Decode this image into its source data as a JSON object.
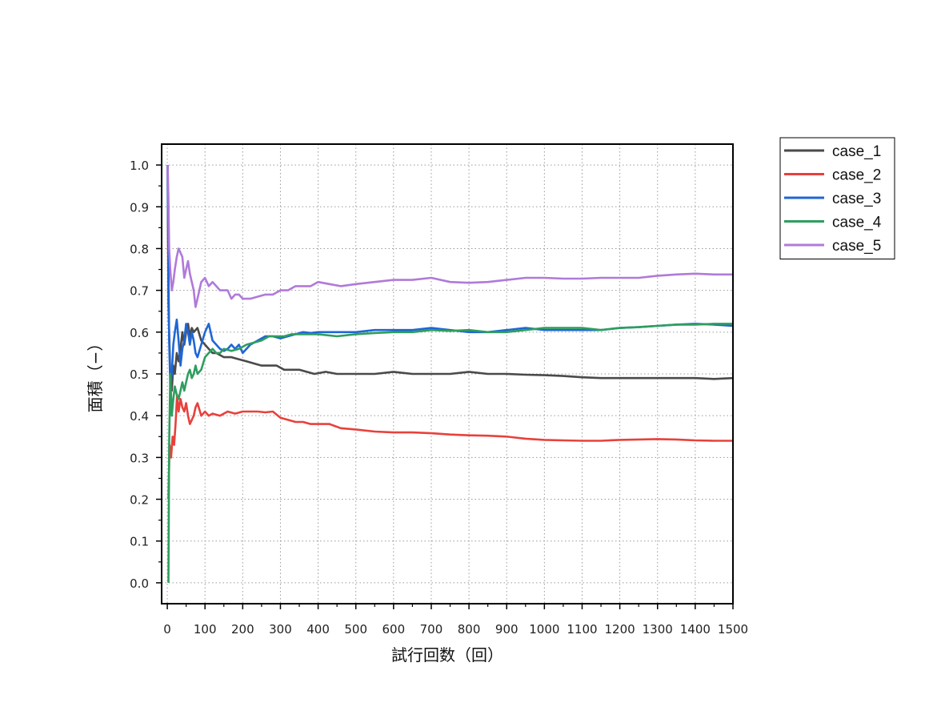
{
  "chart_data": {
    "type": "line",
    "xlabel": "試行回数（回）",
    "ylabel": "面積（−）",
    "xlim": [
      -15,
      1500
    ],
    "ylim": [
      -0.05,
      1.05
    ],
    "xticks": [
      0,
      100,
      200,
      300,
      400,
      500,
      600,
      700,
      800,
      900,
      1000,
      1100,
      1200,
      1300,
      1400,
      1500
    ],
    "yticks": [
      0.0,
      0.1,
      0.2,
      0.3,
      0.4,
      0.5,
      0.6,
      0.7,
      0.8,
      0.9,
      1.0
    ],
    "ytick_labels": [
      "0.0",
      "0.1",
      "0.2",
      "0.3",
      "0.4",
      "0.5",
      "0.6",
      "0.7",
      "0.8",
      "0.9",
      "1.0"
    ],
    "grid": true,
    "legend_position": "outside-top-right",
    "series": [
      {
        "name": "case_1",
        "color": "#4a4a4a",
        "points": [
          [
            1,
            1.0
          ],
          [
            3,
            0.67
          ],
          [
            5,
            0.6
          ],
          [
            8,
            0.5
          ],
          [
            12,
            0.46
          ],
          [
            16,
            0.52
          ],
          [
            20,
            0.5
          ],
          [
            25,
            0.55
          ],
          [
            30,
            0.53
          ],
          [
            35,
            0.56
          ],
          [
            40,
            0.6
          ],
          [
            45,
            0.57
          ],
          [
            50,
            0.6
          ],
          [
            55,
            0.62
          ],
          [
            60,
            0.59
          ],
          [
            65,
            0.61
          ],
          [
            70,
            0.6
          ],
          [
            80,
            0.61
          ],
          [
            90,
            0.58
          ],
          [
            100,
            0.57
          ],
          [
            110,
            0.56
          ],
          [
            120,
            0.55
          ],
          [
            130,
            0.55
          ],
          [
            140,
            0.545
          ],
          [
            150,
            0.54
          ],
          [
            170,
            0.54
          ],
          [
            190,
            0.535
          ],
          [
            210,
            0.53
          ],
          [
            230,
            0.525
          ],
          [
            250,
            0.52
          ],
          [
            270,
            0.52
          ],
          [
            290,
            0.52
          ],
          [
            310,
            0.51
          ],
          [
            330,
            0.51
          ],
          [
            350,
            0.51
          ],
          [
            370,
            0.505
          ],
          [
            390,
            0.5
          ],
          [
            420,
            0.505
          ],
          [
            450,
            0.5
          ],
          [
            500,
            0.5
          ],
          [
            550,
            0.5
          ],
          [
            600,
            0.505
          ],
          [
            650,
            0.5
          ],
          [
            700,
            0.5
          ],
          [
            750,
            0.5
          ],
          [
            800,
            0.505
          ],
          [
            850,
            0.5
          ],
          [
            900,
            0.5
          ],
          [
            950,
            0.498
          ],
          [
            1000,
            0.497
          ],
          [
            1050,
            0.495
          ],
          [
            1100,
            0.492
          ],
          [
            1150,
            0.49
          ],
          [
            1200,
            0.49
          ],
          [
            1250,
            0.49
          ],
          [
            1300,
            0.49
          ],
          [
            1350,
            0.49
          ],
          [
            1400,
            0.49
          ],
          [
            1450,
            0.488
          ],
          [
            1500,
            0.49
          ]
        ]
      },
      {
        "name": "case_2",
        "color": "#e8413c",
        "points": [
          [
            3,
            0.2
          ],
          [
            6,
            0.33
          ],
          [
            10,
            0.3
          ],
          [
            14,
            0.35
          ],
          [
            18,
            0.33
          ],
          [
            22,
            0.38
          ],
          [
            26,
            0.45
          ],
          [
            30,
            0.41
          ],
          [
            35,
            0.44
          ],
          [
            40,
            0.42
          ],
          [
            45,
            0.41
          ],
          [
            50,
            0.43
          ],
          [
            55,
            0.4
          ],
          [
            60,
            0.38
          ],
          [
            65,
            0.39
          ],
          [
            70,
            0.4
          ],
          [
            75,
            0.42
          ],
          [
            80,
            0.43
          ],
          [
            90,
            0.4
          ],
          [
            100,
            0.41
          ],
          [
            110,
            0.4
          ],
          [
            120,
            0.405
          ],
          [
            140,
            0.4
          ],
          [
            160,
            0.41
          ],
          [
            180,
            0.405
          ],
          [
            200,
            0.41
          ],
          [
            220,
            0.41
          ],
          [
            240,
            0.41
          ],
          [
            260,
            0.408
          ],
          [
            280,
            0.41
          ],
          [
            300,
            0.395
          ],
          [
            320,
            0.39
          ],
          [
            340,
            0.385
          ],
          [
            360,
            0.385
          ],
          [
            380,
            0.38
          ],
          [
            400,
            0.38
          ],
          [
            430,
            0.38
          ],
          [
            460,
            0.37
          ],
          [
            500,
            0.367
          ],
          [
            550,
            0.362
          ],
          [
            600,
            0.36
          ],
          [
            650,
            0.36
          ],
          [
            700,
            0.358
          ],
          [
            750,
            0.355
          ],
          [
            800,
            0.353
          ],
          [
            850,
            0.352
          ],
          [
            900,
            0.35
          ],
          [
            950,
            0.345
          ],
          [
            1000,
            0.342
          ],
          [
            1050,
            0.341
          ],
          [
            1100,
            0.34
          ],
          [
            1150,
            0.34
          ],
          [
            1200,
            0.342
          ],
          [
            1250,
            0.343
          ],
          [
            1300,
            0.344
          ],
          [
            1350,
            0.343
          ],
          [
            1400,
            0.341
          ],
          [
            1450,
            0.34
          ],
          [
            1500,
            0.34
          ]
        ]
      },
      {
        "name": "case_3",
        "color": "#1f66d6",
        "points": [
          [
            1,
            1.0
          ],
          [
            3,
            0.75
          ],
          [
            5,
            0.58
          ],
          [
            8,
            0.47
          ],
          [
            12,
            0.5
          ],
          [
            16,
            0.57
          ],
          [
            20,
            0.6
          ],
          [
            25,
            0.63
          ],
          [
            30,
            0.58
          ],
          [
            35,
            0.52
          ],
          [
            40,
            0.56
          ],
          [
            45,
            0.58
          ],
          [
            50,
            0.62
          ],
          [
            55,
            0.6
          ],
          [
            60,
            0.57
          ],
          [
            65,
            0.6
          ],
          [
            70,
            0.58
          ],
          [
            75,
            0.55
          ],
          [
            80,
            0.54
          ],
          [
            90,
            0.57
          ],
          [
            100,
            0.6
          ],
          [
            110,
            0.62
          ],
          [
            120,
            0.58
          ],
          [
            130,
            0.57
          ],
          [
            140,
            0.56
          ],
          [
            150,
            0.555
          ],
          [
            160,
            0.56
          ],
          [
            170,
            0.57
          ],
          [
            180,
            0.56
          ],
          [
            190,
            0.57
          ],
          [
            200,
            0.55
          ],
          [
            210,
            0.56
          ],
          [
            220,
            0.57
          ],
          [
            240,
            0.58
          ],
          [
            260,
            0.59
          ],
          [
            280,
            0.59
          ],
          [
            300,
            0.585
          ],
          [
            320,
            0.59
          ],
          [
            340,
            0.595
          ],
          [
            360,
            0.6
          ],
          [
            380,
            0.598
          ],
          [
            400,
            0.6
          ],
          [
            450,
            0.6
          ],
          [
            500,
            0.6
          ],
          [
            550,
            0.605
          ],
          [
            600,
            0.605
          ],
          [
            650,
            0.605
          ],
          [
            700,
            0.61
          ],
          [
            750,
            0.605
          ],
          [
            800,
            0.6
          ],
          [
            850,
            0.6
          ],
          [
            900,
            0.605
          ],
          [
            950,
            0.61
          ],
          [
            1000,
            0.605
          ],
          [
            1050,
            0.605
          ],
          [
            1100,
            0.605
          ],
          [
            1150,
            0.605
          ],
          [
            1200,
            0.61
          ],
          [
            1250,
            0.612
          ],
          [
            1300,
            0.615
          ],
          [
            1350,
            0.618
          ],
          [
            1400,
            0.62
          ],
          [
            1450,
            0.618
          ],
          [
            1500,
            0.615
          ]
        ]
      },
      {
        "name": "case_4",
        "color": "#2e9e5e",
        "points": [
          [
            3,
            0.0
          ],
          [
            5,
            0.33
          ],
          [
            8,
            0.5
          ],
          [
            12,
            0.4
          ],
          [
            16,
            0.44
          ],
          [
            20,
            0.47
          ],
          [
            25,
            0.45
          ],
          [
            30,
            0.44
          ],
          [
            35,
            0.46
          ],
          [
            40,
            0.48
          ],
          [
            45,
            0.46
          ],
          [
            50,
            0.48
          ],
          [
            55,
            0.5
          ],
          [
            60,
            0.51
          ],
          [
            65,
            0.49
          ],
          [
            70,
            0.5
          ],
          [
            75,
            0.52
          ],
          [
            80,
            0.5
          ],
          [
            90,
            0.51
          ],
          [
            100,
            0.54
          ],
          [
            110,
            0.55
          ],
          [
            120,
            0.56
          ],
          [
            130,
            0.55
          ],
          [
            140,
            0.55
          ],
          [
            150,
            0.56
          ],
          [
            170,
            0.555
          ],
          [
            190,
            0.56
          ],
          [
            210,
            0.57
          ],
          [
            230,
            0.575
          ],
          [
            250,
            0.58
          ],
          [
            270,
            0.59
          ],
          [
            290,
            0.59
          ],
          [
            310,
            0.59
          ],
          [
            330,
            0.595
          ],
          [
            350,
            0.595
          ],
          [
            370,
            0.595
          ],
          [
            400,
            0.595
          ],
          [
            450,
            0.59
          ],
          [
            500,
            0.595
          ],
          [
            550,
            0.598
          ],
          [
            600,
            0.6
          ],
          [
            650,
            0.6
          ],
          [
            700,
            0.605
          ],
          [
            750,
            0.603
          ],
          [
            800,
            0.605
          ],
          [
            850,
            0.6
          ],
          [
            900,
            0.6
          ],
          [
            950,
            0.605
          ],
          [
            1000,
            0.61
          ],
          [
            1050,
            0.61
          ],
          [
            1100,
            0.61
          ],
          [
            1150,
            0.605
          ],
          [
            1200,
            0.61
          ],
          [
            1250,
            0.612
          ],
          [
            1300,
            0.615
          ],
          [
            1350,
            0.618
          ],
          [
            1400,
            0.618
          ],
          [
            1450,
            0.62
          ],
          [
            1500,
            0.62
          ]
        ]
      },
      {
        "name": "case_5",
        "color": "#b07ad9",
        "points": [
          [
            1,
            1.0
          ],
          [
            3,
            0.92
          ],
          [
            5,
            0.8
          ],
          [
            8,
            0.75
          ],
          [
            12,
            0.7
          ],
          [
            16,
            0.72
          ],
          [
            20,
            0.75
          ],
          [
            25,
            0.78
          ],
          [
            30,
            0.8
          ],
          [
            35,
            0.79
          ],
          [
            40,
            0.78
          ],
          [
            45,
            0.73
          ],
          [
            50,
            0.75
          ],
          [
            55,
            0.77
          ],
          [
            60,
            0.74
          ],
          [
            65,
            0.72
          ],
          [
            70,
            0.7
          ],
          [
            75,
            0.66
          ],
          [
            80,
            0.68
          ],
          [
            90,
            0.72
          ],
          [
            100,
            0.73
          ],
          [
            110,
            0.71
          ],
          [
            120,
            0.72
          ],
          [
            130,
            0.71
          ],
          [
            140,
            0.7
          ],
          [
            150,
            0.7
          ],
          [
            160,
            0.7
          ],
          [
            170,
            0.68
          ],
          [
            180,
            0.69
          ],
          [
            190,
            0.69
          ],
          [
            200,
            0.68
          ],
          [
            210,
            0.68
          ],
          [
            220,
            0.68
          ],
          [
            240,
            0.685
          ],
          [
            260,
            0.69
          ],
          [
            280,
            0.69
          ],
          [
            300,
            0.7
          ],
          [
            320,
            0.7
          ],
          [
            340,
            0.71
          ],
          [
            360,
            0.71
          ],
          [
            380,
            0.71
          ],
          [
            400,
            0.72
          ],
          [
            430,
            0.715
          ],
          [
            460,
            0.71
          ],
          [
            500,
            0.715
          ],
          [
            550,
            0.72
          ],
          [
            600,
            0.725
          ],
          [
            650,
            0.725
          ],
          [
            700,
            0.73
          ],
          [
            750,
            0.72
          ],
          [
            800,
            0.718
          ],
          [
            850,
            0.72
          ],
          [
            900,
            0.725
          ],
          [
            950,
            0.73
          ],
          [
            1000,
            0.73
          ],
          [
            1050,
            0.728
          ],
          [
            1100,
            0.728
          ],
          [
            1150,
            0.73
          ],
          [
            1200,
            0.73
          ],
          [
            1250,
            0.73
          ],
          [
            1300,
            0.735
          ],
          [
            1350,
            0.738
          ],
          [
            1400,
            0.74
          ],
          [
            1450,
            0.738
          ],
          [
            1500,
            0.738
          ]
        ]
      }
    ]
  }
}
